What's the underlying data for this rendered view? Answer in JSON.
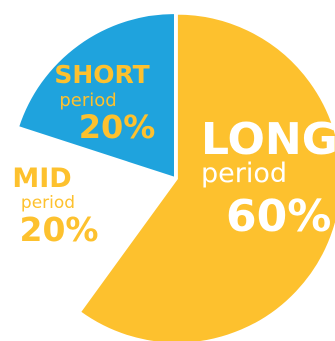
{
  "chart_data": {
    "type": "pie",
    "slices": [
      {
        "name_big": "LONG",
        "name_small": "period",
        "value": 60,
        "value_label": "60%",
        "color": "#FDC12E",
        "text_color": "#FFFFFF"
      },
      {
        "name_big": "MID",
        "name_small": "period",
        "value": 20,
        "value_label": "20%",
        "color": "#FFFFFF",
        "text_color": "#FDC12E"
      },
      {
        "name_big": "SHORT",
        "name_small": "period",
        "value": 20,
        "value_label": "20%",
        "color": "#1FA3DD",
        "text_color": "#FDC12E"
      }
    ],
    "title": "",
    "legend": "none",
    "exploded": "LONG"
  }
}
